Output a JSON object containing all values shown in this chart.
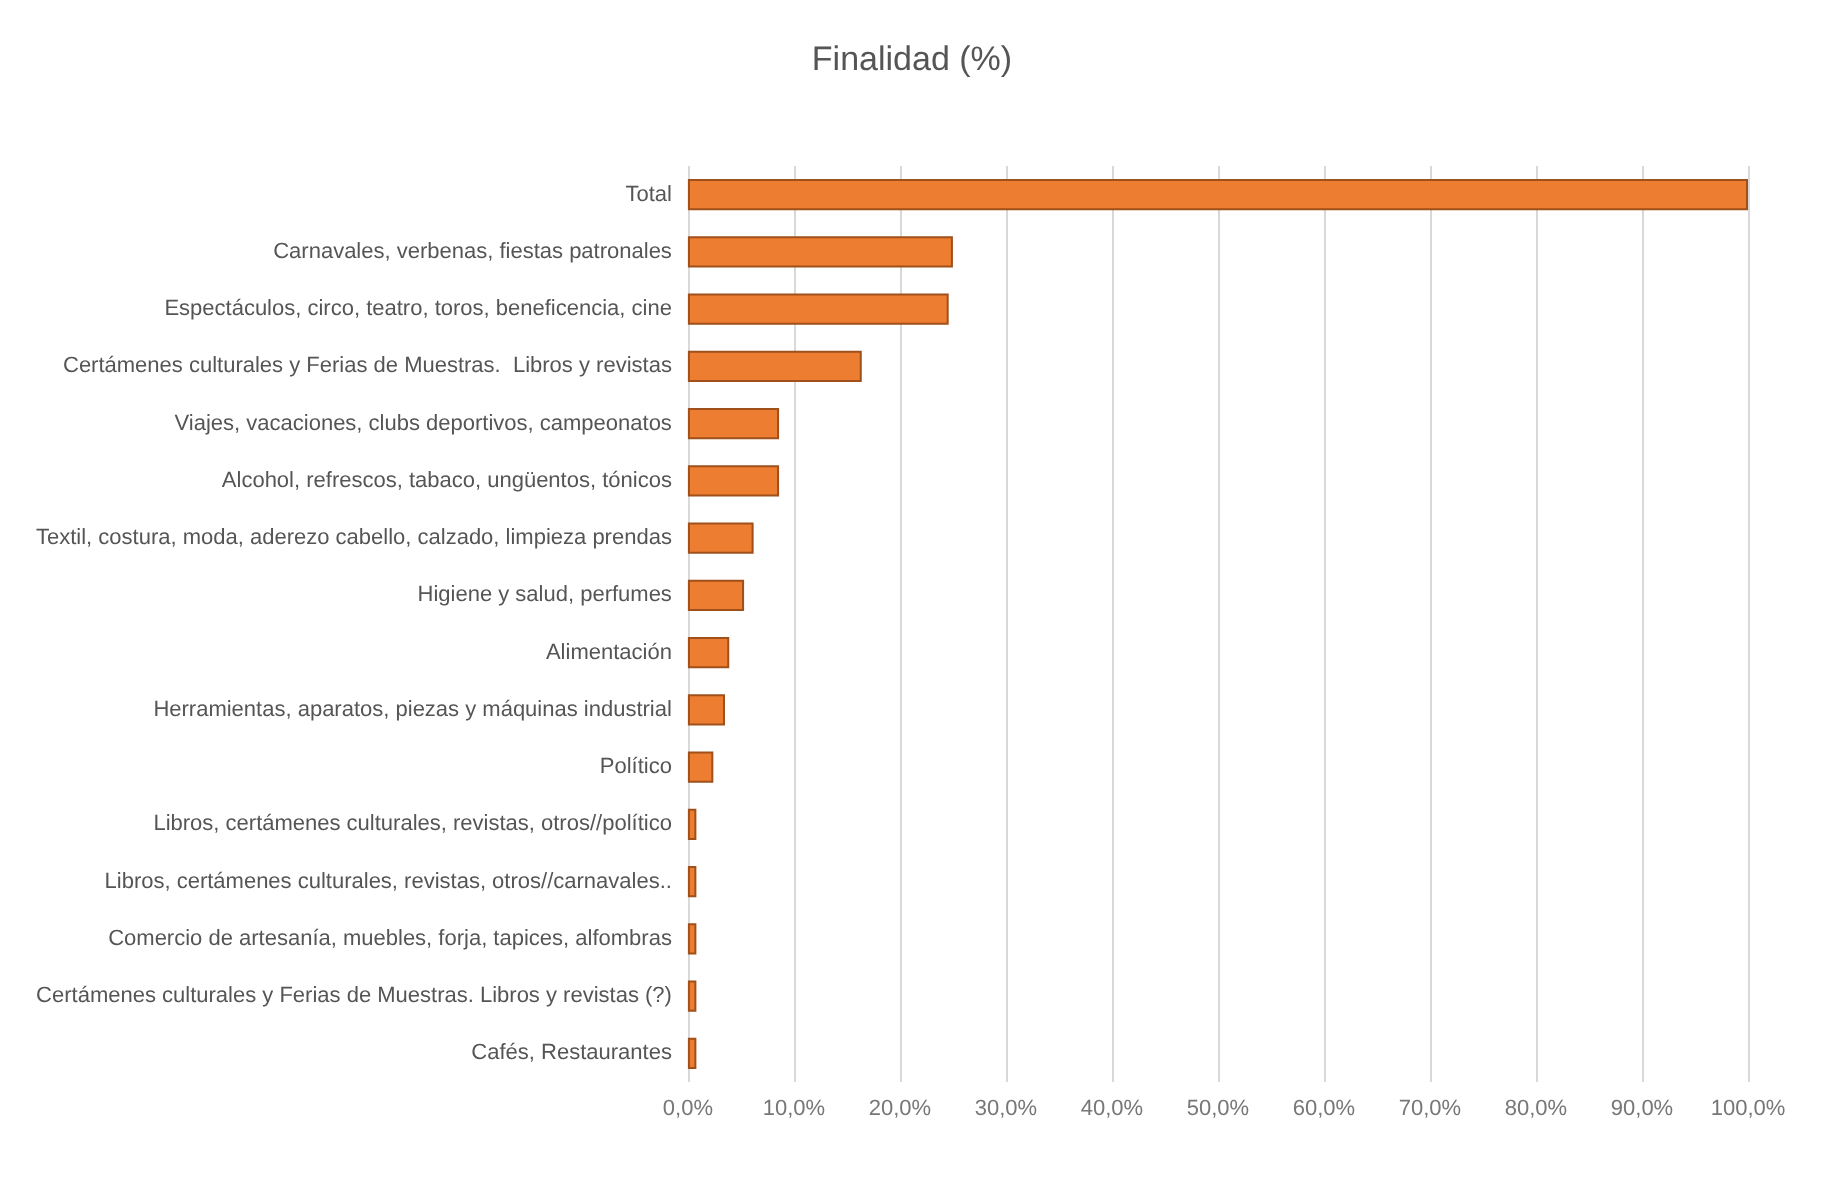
{
  "chart_data": {
    "type": "bar",
    "orientation": "horizontal",
    "title": "Finalidad (%)",
    "categories": [
      "Total",
      "Carnavales, verbenas, fiestas patronales",
      "Espectáculos, circo, teatro, toros, beneficencia, cine",
      "Certámenes culturales y Ferias de Muestras.  Libros y revistas",
      "Viajes, vacaciones, clubs deportivos, campeonatos",
      "Alcohol, refrescos, tabaco, ungüentos, tónicos",
      "Textil, costura, moda, aderezo cabello, calzado, limpieza prendas",
      "Higiene y salud, perfumes",
      "Alimentación",
      "Herramientas, aparatos, piezas y máquinas industrial",
      "Político",
      "Libros, certámenes culturales, revistas, otros//político",
      "Libros, certámenes culturales, revistas, otros//carnavales..",
      "Comercio de artesanía, muebles, forja, tapices, alfombras",
      "Certámenes culturales y Ferias de Muestras. Libros y revistas (?)",
      "Cafés, Restaurantes"
    ],
    "values": [
      100,
      25,
      24.6,
      16.4,
      8.6,
      8.6,
      6.2,
      5.3,
      3.9,
      3.5,
      2.4,
      0.8,
      0.8,
      0.8,
      0.8,
      0.8
    ],
    "color": "#ed7d31",
    "xlim": [
      0,
      100
    ],
    "xticks": [
      {
        "value": 0,
        "label": "0,0%"
      },
      {
        "value": 10,
        "label": "10,0%"
      },
      {
        "value": 20,
        "label": "20,0%"
      },
      {
        "value": 30,
        "label": "30,0%"
      },
      {
        "value": 40,
        "label": "40,0%"
      },
      {
        "value": 50,
        "label": "50,0%"
      },
      {
        "value": 60,
        "label": "60,0%"
      },
      {
        "value": 70,
        "label": "70,0%"
      },
      {
        "value": 80,
        "label": "80,0%"
      },
      {
        "value": 90,
        "label": "90,0%"
      },
      {
        "value": 100,
        "label": "100,0%"
      }
    ],
    "grid": "x"
  }
}
